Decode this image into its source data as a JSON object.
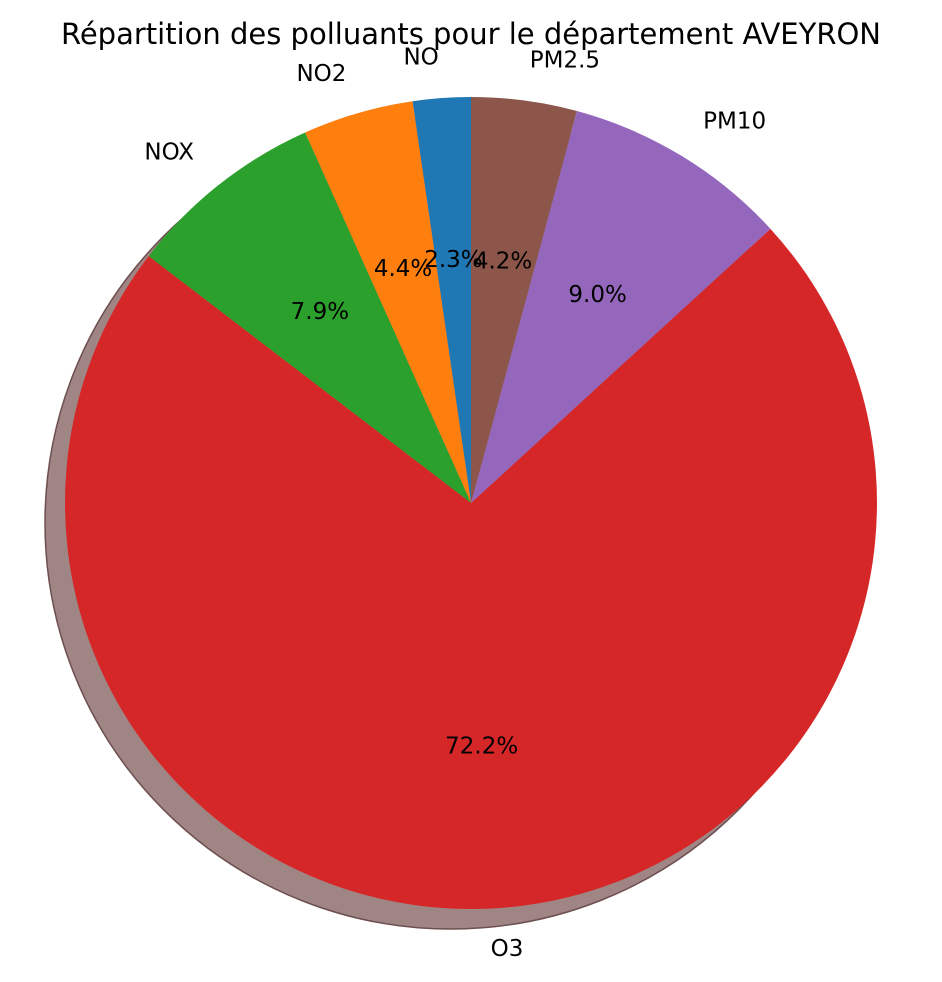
{
  "chart_data": {
    "type": "pie",
    "title": "Répartition des polluants pour le département AVEYRON",
    "categories": [
      "NO",
      "NO2",
      "NOX",
      "O3",
      "PM10",
      "PM2.5"
    ],
    "values": [
      2.3,
      4.4,
      7.9,
      72.2,
      9.0,
      4.2
    ],
    "value_labels": [
      "2.3%",
      "4.4%",
      "7.9%",
      "72.2%",
      "9.0%",
      "4.2%"
    ],
    "colors": [
      "#1f77b4",
      "#ff7f0e",
      "#2ca02c",
      "#d62728",
      "#9467bd",
      "#8c564b"
    ],
    "start_angle_deg": 90,
    "direction": "counterclockwise",
    "shadow": true,
    "shadow_color": "#a08585",
    "autopct": "%1.1f%%"
  }
}
